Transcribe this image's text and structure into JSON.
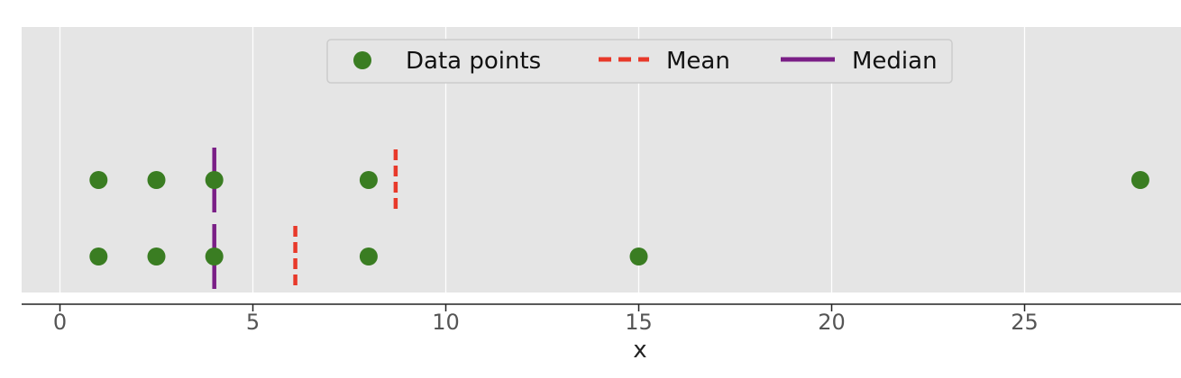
{
  "chart_data": {
    "type": "scatter",
    "title": "",
    "xlabel": "x",
    "ylabel": "",
    "xlim": [
      -1,
      29
    ],
    "xticks": [
      0,
      5,
      10,
      15,
      20,
      25
    ],
    "grid": "vertical",
    "legend": {
      "placement": "upper-center",
      "entries": [
        {
          "key": "points",
          "label": "Data points"
        },
        {
          "key": "mean",
          "label": "Mean"
        },
        {
          "key": "median",
          "label": "Median"
        }
      ]
    },
    "colors": {
      "background": "#e5e5e5",
      "grid": "#ffffff",
      "points": "#3a7d22",
      "mean": "#e8392a",
      "median": "#7a1f86"
    },
    "rows": [
      {
        "values": [
          1,
          2.5,
          4,
          8,
          28
        ],
        "mean": 8.7,
        "median": 4
      },
      {
        "values": [
          1,
          2.5,
          4,
          8,
          15
        ],
        "mean": 6.1,
        "median": 4
      }
    ]
  }
}
